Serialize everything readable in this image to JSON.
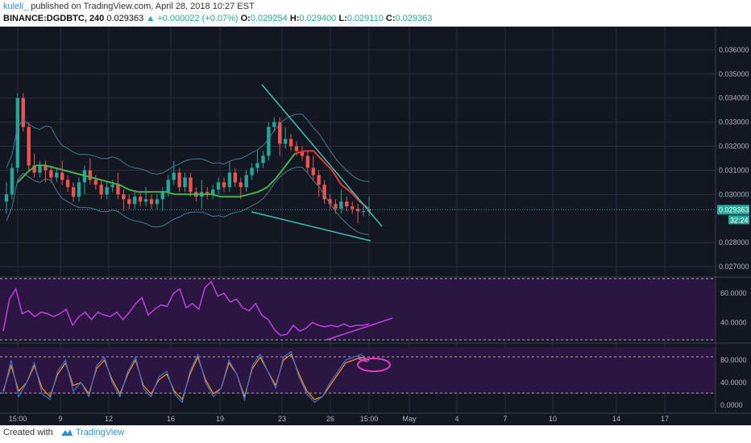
{
  "header": {
    "author": "kuleli_",
    "published": "published on TradingView.com, April 28, 2018 10:27 EST",
    "symbol": "BINANCE:DGDBTC, 240",
    "last": "0.029363",
    "change": "▲ +0.000022 (+0.07%)",
    "o_label": "O:",
    "o_val": "0.029254",
    "h_label": "H:",
    "h_val": "0.029400",
    "l_label": "L:",
    "l_val": "0.029110",
    "c_label": "C:",
    "c_val": "0.029363"
  },
  "footer": {
    "created": "Created with",
    "brand": "TradingView"
  },
  "colors": {
    "background": "#131722",
    "grid": "#2a2e39",
    "up": "#26a69a",
    "down": "#ef5350",
    "ma20": "#4caf50",
    "ema": "#e53935",
    "band": "#4a7a8a",
    "trend": "#40c0b0",
    "rsi": "#c040e0",
    "oscBg": "#2a1640",
    "stochK": "#3f6fd8",
    "stochD": "#ff9800",
    "annot": "#e040c0"
  },
  "chart_data": {
    "type": "candlestick",
    "price_axis": [
      "0.036000",
      "0.035000",
      "0.034000",
      "0.033000",
      "0.032000",
      "0.031000",
      "0.030000",
      "0.028000",
      "0.027000"
    ],
    "price_min": 0.0266,
    "price_max": 0.0369,
    "current_price_label": "0.029363",
    "countdown_label": "32:24",
    "rsi_axis": [
      "60.0000",
      "40.0000"
    ],
    "stoch_axis": [
      "80.0000",
      "40.0000",
      "0.0000"
    ],
    "x_axis": [
      "15:00",
      "9",
      "12",
      "16",
      "19",
      "23",
      "26",
      "15:00",
      "May",
      "4",
      "7",
      "10",
      "14",
      "17"
    ],
    "closes": [
      0.03,
      0.0311,
      0.034,
      0.0328,
      0.0312,
      0.0309,
      0.0312,
      0.031,
      0.0307,
      0.0309,
      0.0306,
      0.0303,
      0.0299,
      0.0305,
      0.031,
      0.0306,
      0.0304,
      0.03,
      0.0303,
      0.0304,
      0.03,
      0.0298,
      0.0296,
      0.0299,
      0.0297,
      0.0298,
      0.0296,
      0.0298,
      0.0301,
      0.0306,
      0.0309,
      0.0303,
      0.0307,
      0.0301,
      0.0299,
      0.0301,
      0.03,
      0.0302,
      0.0305,
      0.0303,
      0.0309,
      0.0305,
      0.0303,
      0.0308,
      0.0311,
      0.0313,
      0.0316,
      0.0328,
      0.033,
      0.0321,
      0.0323,
      0.032,
      0.0318,
      0.0316,
      0.0311,
      0.0308,
      0.0304,
      0.0298,
      0.0296,
      0.0294,
      0.0297,
      0.0295,
      0.0294,
      0.0293,
      0.0293,
      0.0294
    ],
    "ema": [
      0.0305,
      0.0309,
      0.0312,
      0.0312,
      0.0311,
      0.031,
      0.0309,
      0.0308,
      0.0307,
      0.0306,
      0.0305,
      0.0304,
      0.0302,
      0.0301,
      0.0301,
      0.0301,
      0.0301,
      0.03,
      0.03,
      0.03,
      0.03,
      0.03,
      0.0299,
      0.0299,
      0.0299,
      0.03,
      0.0301,
      0.0303,
      0.0307,
      0.0312,
      0.0317,
      0.0318,
      0.0318,
      0.0314,
      0.031,
      0.0304,
      0.0301,
      0.0297,
      0.0294
    ],
    "rsi": [
      34,
      56,
      63,
      46,
      48,
      44,
      47,
      46,
      44,
      46,
      49,
      38,
      44,
      47,
      42,
      47,
      45,
      44,
      47,
      42,
      47,
      53,
      57,
      45,
      49,
      52,
      51,
      60,
      63,
      50,
      53,
      49,
      64,
      68,
      58,
      60,
      54,
      56,
      50,
      48,
      53,
      45,
      42,
      35,
      31,
      32,
      38,
      34,
      36,
      40,
      38,
      37,
      38,
      37,
      39,
      37,
      38,
      38,
      39
    ],
    "stochK": [
      20,
      80,
      15,
      40,
      75,
      20,
      10,
      60,
      80,
      25,
      40,
      15,
      70,
      85,
      40,
      15,
      60,
      85,
      30,
      15,
      50,
      60,
      20,
      5,
      60,
      90,
      40,
      15,
      30,
      80,
      55,
      10,
      70,
      90,
      60,
      30,
      85,
      95,
      50,
      20,
      5,
      15,
      40,
      60,
      80,
      85,
      90,
      78
    ],
    "stochD": [
      25,
      70,
      25,
      40,
      70,
      30,
      15,
      55,
      75,
      35,
      40,
      20,
      65,
      80,
      45,
      20,
      55,
      80,
      35,
      20,
      45,
      55,
      25,
      10,
      55,
      85,
      45,
      20,
      30,
      75,
      55,
      15,
      65,
      85,
      60,
      35,
      80,
      90,
      55,
      25,
      10,
      15,
      35,
      55,
      75,
      80,
      85,
      80
    ]
  }
}
